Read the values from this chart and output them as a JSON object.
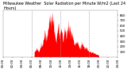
{
  "title": "Milwaukee Weather  Solar Radiation per Minute W/m2 (Last 24 Hours)",
  "background_color": "#ffffff",
  "plot_bg_color": "#ffffff",
  "bar_color": "#ff0000",
  "grid_color": "#999999",
  "grid_style": "--",
  "y_ticks": [
    100,
    200,
    300,
    400,
    500,
    600,
    700,
    800
  ],
  "ylim": [
    0,
    900
  ],
  "num_points": 1440,
  "peak_hour": 10.5,
  "peak_value": 900,
  "figsize": [
    1.6,
    0.87
  ],
  "dpi": 100,
  "title_fontsize": 3.5,
  "tick_fontsize": 2.8,
  "text_color": "#000000",
  "xlim": [
    0,
    1440
  ],
  "x_tick_hours": [
    0,
    2,
    4,
    6,
    8,
    10,
    12,
    14,
    16,
    18,
    20,
    22,
    24
  ],
  "vgrid_hours": [
    6,
    12,
    18
  ]
}
